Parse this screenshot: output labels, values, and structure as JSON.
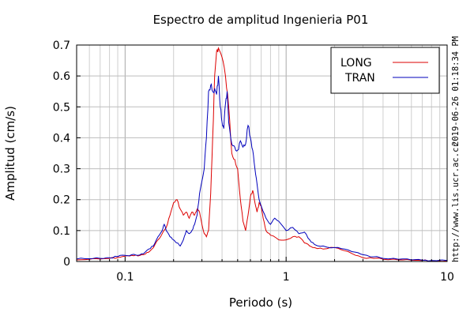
{
  "chart_data": {
    "type": "line",
    "title": "Espectro de amplitud Ingenieria P01",
    "xlabel": "Periodo (s)",
    "ylabel": "Amplitud (cm/s)",
    "x_scale": "log",
    "xlim": [
      0.05,
      10
    ],
    "ylim": [
      0,
      0.7
    ],
    "x_ticks": [
      "0.1",
      "1",
      "10"
    ],
    "y_ticks": [
      "0",
      "0.1",
      "0.2",
      "0.3",
      "0.4",
      "0.5",
      "0.6",
      "0.7"
    ],
    "grid": true,
    "legend_position": "top-right",
    "timestamp": "2019-06-26 01:18:34 PM",
    "source_url": "http://www.lis.ucr.ac.cr",
    "series": [
      {
        "name": "LONG",
        "color": "#dd0000",
        "points": [
          [
            0.05,
            0.005
          ],
          [
            0.06,
            0.007
          ],
          [
            0.07,
            0.008
          ],
          [
            0.08,
            0.01
          ],
          [
            0.09,
            0.013
          ],
          [
            0.1,
            0.017
          ],
          [
            0.11,
            0.02
          ],
          [
            0.12,
            0.018
          ],
          [
            0.13,
            0.022
          ],
          [
            0.14,
            0.03
          ],
          [
            0.15,
            0.045
          ],
          [
            0.16,
            0.07
          ],
          [
            0.17,
            0.09
          ],
          [
            0.18,
            0.11
          ],
          [
            0.19,
            0.15
          ],
          [
            0.2,
            0.19
          ],
          [
            0.21,
            0.2
          ],
          [
            0.22,
            0.17
          ],
          [
            0.23,
            0.15
          ],
          [
            0.24,
            0.16
          ],
          [
            0.25,
            0.14
          ],
          [
            0.26,
            0.16
          ],
          [
            0.27,
            0.15
          ],
          [
            0.28,
            0.17
          ],
          [
            0.29,
            0.16
          ],
          [
            0.3,
            0.12
          ],
          [
            0.31,
            0.09
          ],
          [
            0.32,
            0.08
          ],
          [
            0.33,
            0.1
          ],
          [
            0.34,
            0.22
          ],
          [
            0.35,
            0.4
          ],
          [
            0.36,
            0.6
          ],
          [
            0.37,
            0.68
          ],
          [
            0.38,
            0.69
          ],
          [
            0.4,
            0.66
          ],
          [
            0.42,
            0.6
          ],
          [
            0.44,
            0.5
          ],
          [
            0.46,
            0.35
          ],
          [
            0.48,
            0.33
          ],
          [
            0.5,
            0.3
          ],
          [
            0.52,
            0.2
          ],
          [
            0.54,
            0.13
          ],
          [
            0.56,
            0.1
          ],
          [
            0.58,
            0.15
          ],
          [
            0.6,
            0.21
          ],
          [
            0.62,
            0.23
          ],
          [
            0.64,
            0.19
          ],
          [
            0.66,
            0.16
          ],
          [
            0.68,
            0.19
          ],
          [
            0.7,
            0.18
          ],
          [
            0.72,
            0.14
          ],
          [
            0.75,
            0.1
          ],
          [
            0.8,
            0.085
          ],
          [
            0.9,
            0.07
          ],
          [
            1.0,
            0.07
          ],
          [
            1.1,
            0.08
          ],
          [
            1.2,
            0.08
          ],
          [
            1.3,
            0.06
          ],
          [
            1.4,
            0.05
          ],
          [
            1.5,
            0.045
          ],
          [
            1.7,
            0.04
          ],
          [
            2.0,
            0.045
          ],
          [
            2.3,
            0.035
          ],
          [
            2.7,
            0.02
          ],
          [
            3.0,
            0.012
          ],
          [
            3.5,
            0.01
          ],
          [
            4.0,
            0.007
          ],
          [
            5.0,
            0.005
          ],
          [
            6.0,
            0.004
          ],
          [
            7.0,
            0.003
          ],
          [
            8.0,
            0.002
          ],
          [
            10.0,
            0.002
          ]
        ]
      },
      {
        "name": "TRAN",
        "color": "#0000bb",
        "points": [
          [
            0.05,
            0.008
          ],
          [
            0.06,
            0.009
          ],
          [
            0.07,
            0.01
          ],
          [
            0.08,
            0.012
          ],
          [
            0.09,
            0.016
          ],
          [
            0.1,
            0.02
          ],
          [
            0.11,
            0.022
          ],
          [
            0.12,
            0.02
          ],
          [
            0.13,
            0.025
          ],
          [
            0.14,
            0.04
          ],
          [
            0.15,
            0.05
          ],
          [
            0.16,
            0.08
          ],
          [
            0.17,
            0.1
          ],
          [
            0.175,
            0.12
          ],
          [
            0.18,
            0.1
          ],
          [
            0.19,
            0.08
          ],
          [
            0.2,
            0.07
          ],
          [
            0.21,
            0.06
          ],
          [
            0.22,
            0.05
          ],
          [
            0.23,
            0.07
          ],
          [
            0.24,
            0.1
          ],
          [
            0.25,
            0.09
          ],
          [
            0.26,
            0.1
          ],
          [
            0.27,
            0.12
          ],
          [
            0.28,
            0.15
          ],
          [
            0.29,
            0.22
          ],
          [
            0.3,
            0.26
          ],
          [
            0.31,
            0.3
          ],
          [
            0.32,
            0.4
          ],
          [
            0.33,
            0.55
          ],
          [
            0.34,
            0.57
          ],
          [
            0.35,
            0.55
          ],
          [
            0.36,
            0.56
          ],
          [
            0.37,
            0.54
          ],
          [
            0.38,
            0.6
          ],
          [
            0.39,
            0.5
          ],
          [
            0.4,
            0.45
          ],
          [
            0.41,
            0.43
          ],
          [
            0.42,
            0.51
          ],
          [
            0.43,
            0.55
          ],
          [
            0.44,
            0.45
          ],
          [
            0.46,
            0.38
          ],
          [
            0.48,
            0.37
          ],
          [
            0.5,
            0.36
          ],
          [
            0.52,
            0.39
          ],
          [
            0.54,
            0.37
          ],
          [
            0.56,
            0.38
          ],
          [
            0.58,
            0.44
          ],
          [
            0.6,
            0.4
          ],
          [
            0.62,
            0.36
          ],
          [
            0.64,
            0.3
          ],
          [
            0.66,
            0.25
          ],
          [
            0.68,
            0.2
          ],
          [
            0.7,
            0.18
          ],
          [
            0.75,
            0.14
          ],
          [
            0.8,
            0.12
          ],
          [
            0.85,
            0.14
          ],
          [
            0.9,
            0.13
          ],
          [
            1.0,
            0.1
          ],
          [
            1.1,
            0.11
          ],
          [
            1.2,
            0.09
          ],
          [
            1.3,
            0.095
          ],
          [
            1.4,
            0.07
          ],
          [
            1.5,
            0.055
          ],
          [
            1.7,
            0.05
          ],
          [
            2.0,
            0.045
          ],
          [
            2.3,
            0.04
          ],
          [
            2.7,
            0.03
          ],
          [
            3.0,
            0.022
          ],
          [
            3.5,
            0.015
          ],
          [
            4.0,
            0.01
          ],
          [
            5.0,
            0.007
          ],
          [
            6.0,
            0.005
          ],
          [
            7.0,
            0.004
          ],
          [
            8.0,
            0.003
          ],
          [
            10.0,
            0.003
          ]
        ]
      }
    ]
  }
}
